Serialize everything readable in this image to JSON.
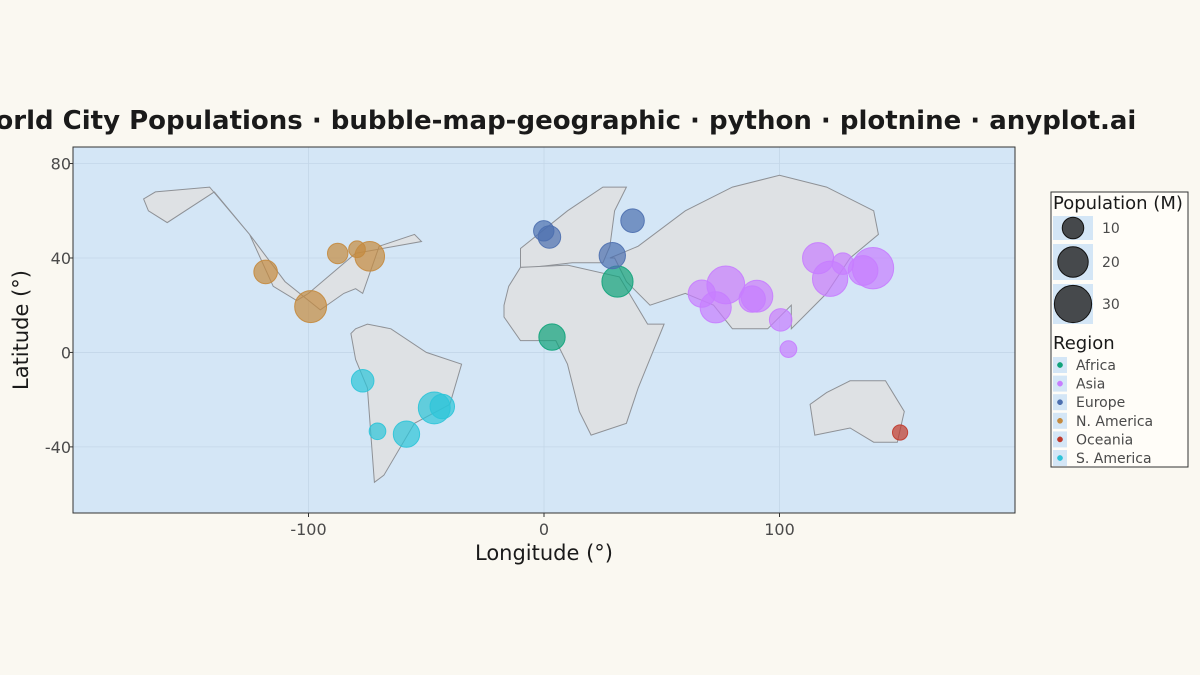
{
  "chart_data": {
    "type": "scatter",
    "title": "World City Populations · bubble-map-geographic · python · plotnine · anyplot.ai",
    "xlabel": "Longitude (°)",
    "ylabel": "Latitude (°)",
    "xlim": [
      -200,
      200
    ],
    "ylim": [
      -68,
      87
    ],
    "x_ticks": [
      -100,
      0,
      100
    ],
    "x_tick_labels": [
      "-100",
      "0",
      "100"
    ],
    "y_ticks": [
      -40,
      0,
      40,
      80
    ],
    "y_tick_labels": [
      "-40",
      "0",
      "40",
      "80"
    ],
    "grid": true,
    "panel_color": "#D4E6F6",
    "land_color": "#DEE1E4",
    "size_legend": {
      "title": "Population (M)",
      "values": [
        10,
        20,
        30
      ],
      "labels": [
        "10",
        "20",
        "30"
      ]
    },
    "color_legend": {
      "title": "Region",
      "placement": "right"
    },
    "series": [
      {
        "name": "Africa",
        "color": "#10A37A",
        "points": [
          {
            "x": 31.2,
            "y": 30.0,
            "size": 21
          },
          {
            "x": 3.4,
            "y": 6.5,
            "size": 15
          }
        ]
      },
      {
        "name": "Asia",
        "color": "#C77DFF",
        "points": [
          {
            "x": 139.7,
            "y": 35.7,
            "size": 37
          },
          {
            "x": 121.5,
            "y": 31.2,
            "size": 27
          },
          {
            "x": 116.4,
            "y": 39.9,
            "size": 21
          },
          {
            "x": 77.2,
            "y": 28.6,
            "size": 31
          },
          {
            "x": 72.9,
            "y": 19.1,
            "size": 21
          },
          {
            "x": 90.4,
            "y": 23.8,
            "size": 22
          },
          {
            "x": 67.0,
            "y": 24.9,
            "size": 16
          },
          {
            "x": 88.4,
            "y": 22.6,
            "size": 15
          },
          {
            "x": 135.5,
            "y": 34.7,
            "size": 19
          },
          {
            "x": 100.5,
            "y": 13.8,
            "size": 11
          },
          {
            "x": 126.9,
            "y": 37.6,
            "size": 10
          },
          {
            "x": 103.8,
            "y": 1.4,
            "size": 6
          }
        ]
      },
      {
        "name": "Europe",
        "color": "#4C6FAF",
        "points": [
          {
            "x": 37.6,
            "y": 55.8,
            "size": 12
          },
          {
            "x": 29.0,
            "y": 41.0,
            "size": 15
          },
          {
            "x": 2.3,
            "y": 48.9,
            "size": 11
          },
          {
            "x": -0.1,
            "y": 51.5,
            "size": 9
          }
        ]
      },
      {
        "name": "N. America",
        "color": "#C48A3E",
        "points": [
          {
            "x": -99.1,
            "y": 19.4,
            "size": 22
          },
          {
            "x": -74.0,
            "y": 40.7,
            "size": 19
          },
          {
            "x": -118.2,
            "y": 34.1,
            "size": 12
          },
          {
            "x": -87.6,
            "y": 41.9,
            "size": 9
          },
          {
            "x": -79.4,
            "y": 43.7,
            "size": 6
          }
        ]
      },
      {
        "name": "Oceania",
        "color": "#C0392B",
        "points": [
          {
            "x": 151.2,
            "y": -33.9,
            "size": 5
          }
        ]
      },
      {
        "name": "S. America",
        "color": "#2CC4D8",
        "points": [
          {
            "x": -46.6,
            "y": -23.5,
            "size": 22
          },
          {
            "x": -58.4,
            "y": -34.6,
            "size": 15
          },
          {
            "x": -43.2,
            "y": -22.9,
            "size": 13
          },
          {
            "x": -77.0,
            "y": -12.0,
            "size": 11
          },
          {
            "x": -70.7,
            "y": -33.4,
            "size": 6
          }
        ]
      }
    ]
  }
}
